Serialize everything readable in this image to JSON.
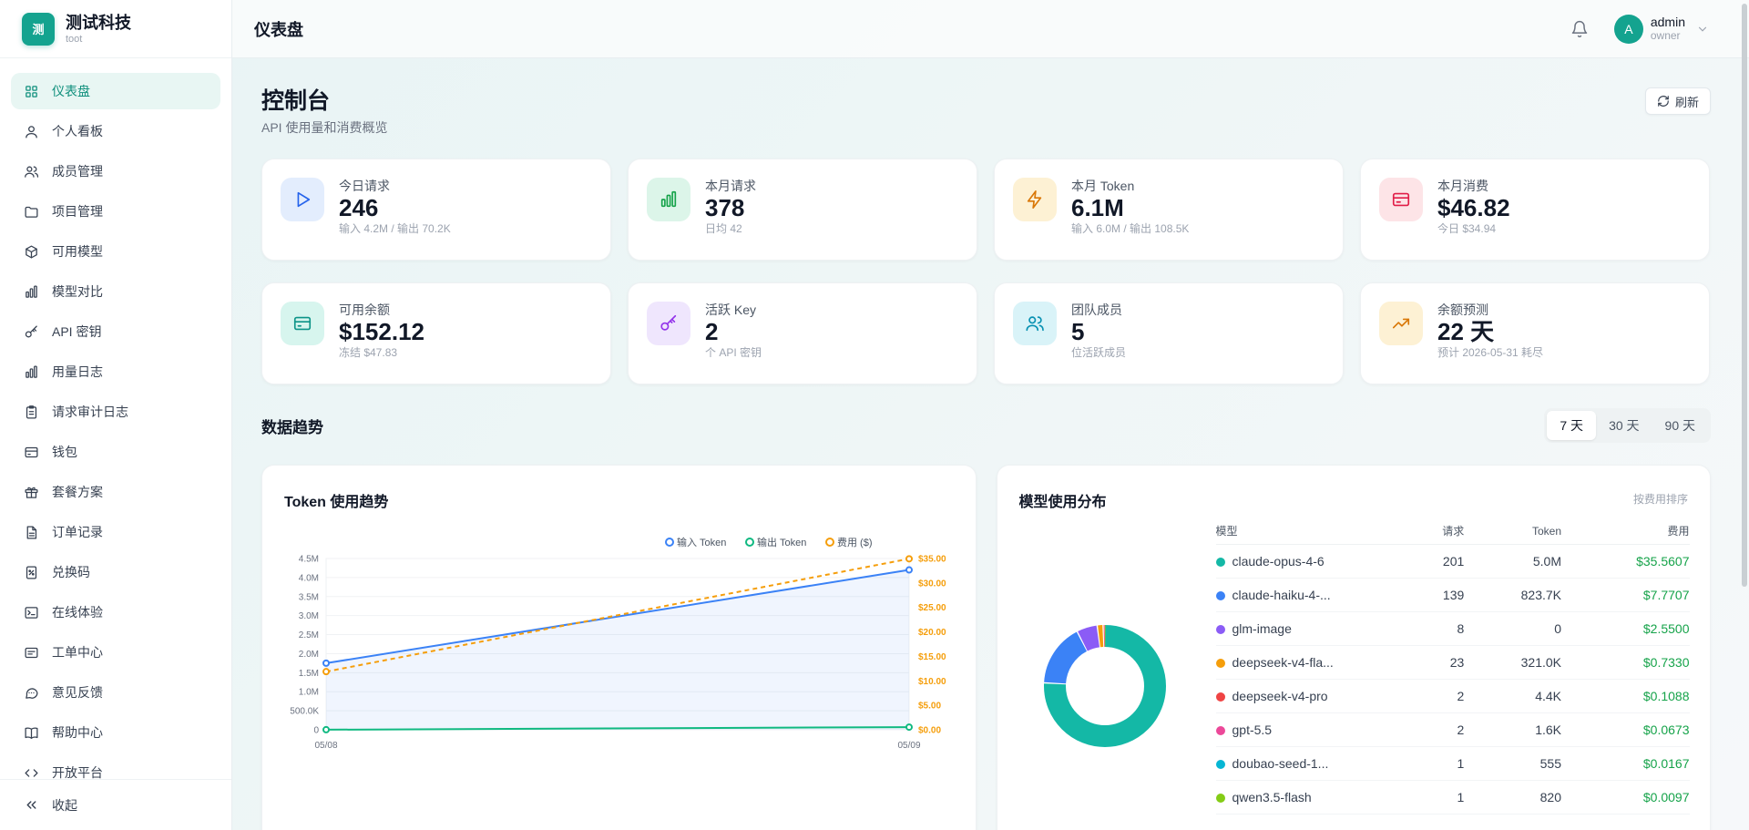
{
  "brand": {
    "logo_text": "测",
    "name": "测试科技",
    "sub": "toot"
  },
  "sidebar": {
    "items": [
      {
        "label": "仪表盘",
        "icon": "grid-icon",
        "active": true
      },
      {
        "label": "个人看板",
        "icon": "user-icon"
      },
      {
        "label": "成员管理",
        "icon": "users-icon"
      },
      {
        "label": "项目管理",
        "icon": "folder-icon"
      },
      {
        "label": "可用模型",
        "icon": "cube-icon"
      },
      {
        "label": "模型对比",
        "icon": "bar-chart-icon"
      },
      {
        "label": "API 密钥",
        "icon": "key-icon"
      },
      {
        "label": "用量日志",
        "icon": "bar-chart-icon"
      },
      {
        "label": "请求审计日志",
        "icon": "clipboard-icon"
      },
      {
        "label": "钱包",
        "icon": "wallet-icon"
      },
      {
        "label": "套餐方案",
        "icon": "gift-icon"
      },
      {
        "label": "订单记录",
        "icon": "document-icon"
      },
      {
        "label": "兑换码",
        "icon": "voucher-icon"
      },
      {
        "label": "在线体验",
        "icon": "terminal-icon"
      },
      {
        "label": "工单中心",
        "icon": "ticket-icon"
      },
      {
        "label": "意见反馈",
        "icon": "chat-icon"
      },
      {
        "label": "帮助中心",
        "icon": "book-icon"
      },
      {
        "label": "开放平台",
        "icon": "code-icon"
      }
    ],
    "collapse_label": "收起"
  },
  "topbar": {
    "title": "仪表盘",
    "user": {
      "initial": "A",
      "name": "admin",
      "role": "owner"
    }
  },
  "page": {
    "title": "控制台",
    "subtitle": "API 使用量和消费概览",
    "refresh_label": "刷新"
  },
  "stats": [
    {
      "label": "今日请求",
      "value": "246",
      "sub": "输入 4.2M / 输出 70.2K",
      "icon": "play-icon",
      "bg": "#e3edfd",
      "fg": "#2563eb"
    },
    {
      "label": "本月请求",
      "value": "378",
      "sub": "日均 42",
      "icon": "bar-chart-icon",
      "bg": "#dcf5e9",
      "fg": "#16a34a"
    },
    {
      "label": "本月 Token",
      "value": "6.1M",
      "sub": "输入 6.0M / 输出 108.5K",
      "icon": "bolt-icon",
      "bg": "#fdf1d4",
      "fg": "#d97706"
    },
    {
      "label": "本月消费",
      "value": "$46.82",
      "sub": "今日 $34.94",
      "icon": "card-icon",
      "bg": "#fde4e7",
      "fg": "#e11d48"
    },
    {
      "label": "可用余额",
      "value": "$152.12",
      "sub": "冻结 $47.83",
      "icon": "wallet-icon",
      "bg": "#d7f5ee",
      "fg": "#0d9488"
    },
    {
      "label": "活跃 Key",
      "value": "2",
      "sub": "个 API 密钥",
      "icon": "key-icon",
      "bg": "#efe6fd",
      "fg": "#9333ea"
    },
    {
      "label": "团队成员",
      "value": "5",
      "sub": "位活跃成员",
      "icon": "users-icon",
      "bg": "#d9f3f8",
      "fg": "#0891b2"
    },
    {
      "label": "余额预测",
      "value": "22 天",
      "sub": "预计 2026-05-31 耗尽",
      "icon": "trend-up-icon",
      "bg": "#fdf1d4",
      "fg": "#d97706"
    }
  ],
  "trend": {
    "title": "数据趋势",
    "ranges": [
      "7 天",
      "30 天",
      "90 天"
    ],
    "active_range": "7 天"
  },
  "token_panel": {
    "title": "Token 使用趋势"
  },
  "chart_data": {
    "type": "line",
    "title": "Token 使用趋势",
    "x": [
      "05/08",
      "05/09"
    ],
    "series": [
      {
        "name": "输入 Token",
        "axis": "left",
        "color": "#3b82f6",
        "values": [
          1750000,
          4200000
        ]
      },
      {
        "name": "输出 Token",
        "axis": "left",
        "color": "#10b981",
        "values": [
          2000,
          70200
        ]
      },
      {
        "name": "费用 ($)",
        "axis": "right",
        "color": "#f59e0b",
        "dashed": true,
        "values": [
          11.88,
          34.94
        ]
      }
    ],
    "y_left": {
      "ticks": [
        "0",
        "500.0K",
        "1.0M",
        "1.5M",
        "2.0M",
        "2.5M",
        "3.0M",
        "3.5M",
        "4.0M",
        "4.5M"
      ],
      "max": 4500000
    },
    "y_right": {
      "ticks": [
        "$0.00",
        "$5.00",
        "$10.00",
        "$15.00",
        "$20.00",
        "$25.00",
        "$30.00",
        "$35.00"
      ],
      "max": 35
    },
    "legend_position": "top-right",
    "grid": true
  },
  "model_panel": {
    "title": "模型使用分布",
    "sort_label": "按费用排序",
    "headers": [
      "模型",
      "请求",
      "Token",
      "费用"
    ],
    "rows": [
      {
        "model": "claude-opus-4-6",
        "requests": "201",
        "tokens": "5.0M",
        "cost": "$35.5607",
        "color": "#14b8a6",
        "share": 35.5607
      },
      {
        "model": "claude-haiku-4-...",
        "requests": "139",
        "tokens": "823.7K",
        "cost": "$7.7707",
        "color": "#3b82f6",
        "share": 7.7707
      },
      {
        "model": "glm-image",
        "requests": "8",
        "tokens": "0",
        "cost": "$2.5500",
        "color": "#8b5cf6",
        "share": 2.55
      },
      {
        "model": "deepseek-v4-fla...",
        "requests": "23",
        "tokens": "321.0K",
        "cost": "$0.7330",
        "color": "#f59e0b",
        "share": 0.733
      },
      {
        "model": "deepseek-v4-pro",
        "requests": "2",
        "tokens": "4.4K",
        "cost": "$0.1088",
        "color": "#ef4444",
        "share": 0.1088
      },
      {
        "model": "gpt-5.5",
        "requests": "2",
        "tokens": "1.6K",
        "cost": "$0.0673",
        "color": "#ec4899",
        "share": 0.0673
      },
      {
        "model": "doubao-seed-1...",
        "requests": "1",
        "tokens": "555",
        "cost": "$0.0167",
        "color": "#06b6d4",
        "share": 0.0167
      },
      {
        "model": "qwen3.5-flash",
        "requests": "1",
        "tokens": "820",
        "cost": "$0.0097",
        "color": "#84cc16",
        "share": 0.0097
      }
    ]
  }
}
